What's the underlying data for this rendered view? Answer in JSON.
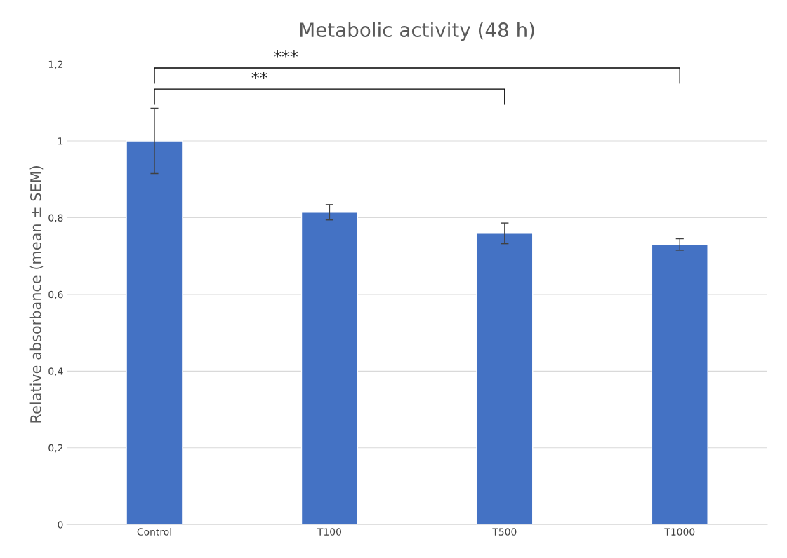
{
  "chart_data": {
    "type": "bar",
    "title": "Metabolic activity (48 h)",
    "ylabel": "Relative absorbance (mean ± SEM)",
    "categories": [
      "Control",
      "T100",
      "T500",
      "T1000"
    ],
    "values": [
      1.0,
      0.814,
      0.759,
      0.73
    ],
    "errors": [
      0.085,
      0.02,
      0.027,
      0.015
    ],
    "color": "#4472c4",
    "ylim": [
      0,
      1.2
    ],
    "yticks": [
      0,
      {
        "value": 0.2,
        "label": "0,2"
      },
      {
        "value": 0.4,
        "label": "0,4"
      },
      {
        "value": 0.6,
        "label": "0,6"
      },
      {
        "value": 0.8,
        "label": "0,8"
      },
      1,
      {
        "value": 1.2,
        "label": "1,2"
      }
    ],
    "grid": "y",
    "annotations": [
      "***",
      "**"
    ]
  }
}
